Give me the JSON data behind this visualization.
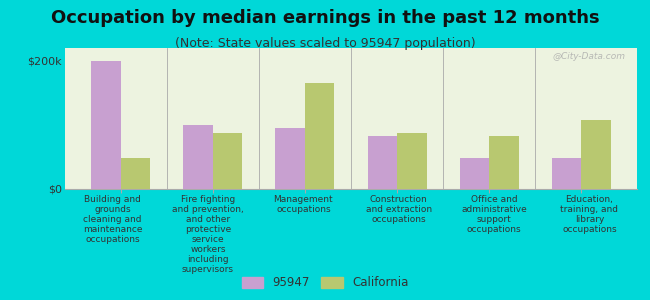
{
  "title": "Occupation by median earnings in the past 12 months",
  "subtitle": "(Note: State values scaled to 95947 population)",
  "background_color": "#00d8d8",
  "plot_bg_gradient_top": "#f0f5e0",
  "plot_bg_gradient_bottom": "#e0f0e0",
  "categories": [
    "Building and\ngrounds\ncleaning and\nmaintenance\noccupations",
    "Fire fighting\nand prevention,\nand other\nprotective\nservice\nworkers\nincluding\nsupervisors",
    "Management\noccupations",
    "Construction\nand extraction\noccupations",
    "Office and\nadministrative\nsupport\noccupations",
    "Education,\ntraining, and\nlibrary\noccupations"
  ],
  "values_95947": [
    200000,
    100000,
    95000,
    82000,
    48000,
    48000
  ],
  "values_california": [
    48000,
    88000,
    165000,
    88000,
    82000,
    108000
  ],
  "color_95947": "#c8a0d0",
  "color_california": "#b8c870",
  "ylim": [
    0,
    220000
  ],
  "yticks": [
    0,
    200000
  ],
  "ytick_labels": [
    "$0",
    "$200k"
  ],
  "legend_95947": "95947",
  "legend_california": "California",
  "title_fontsize": 13,
  "subtitle_fontsize": 9,
  "ytick_fontsize": 8,
  "xtick_fontsize": 6.5,
  "watermark": "@City-Data.com"
}
